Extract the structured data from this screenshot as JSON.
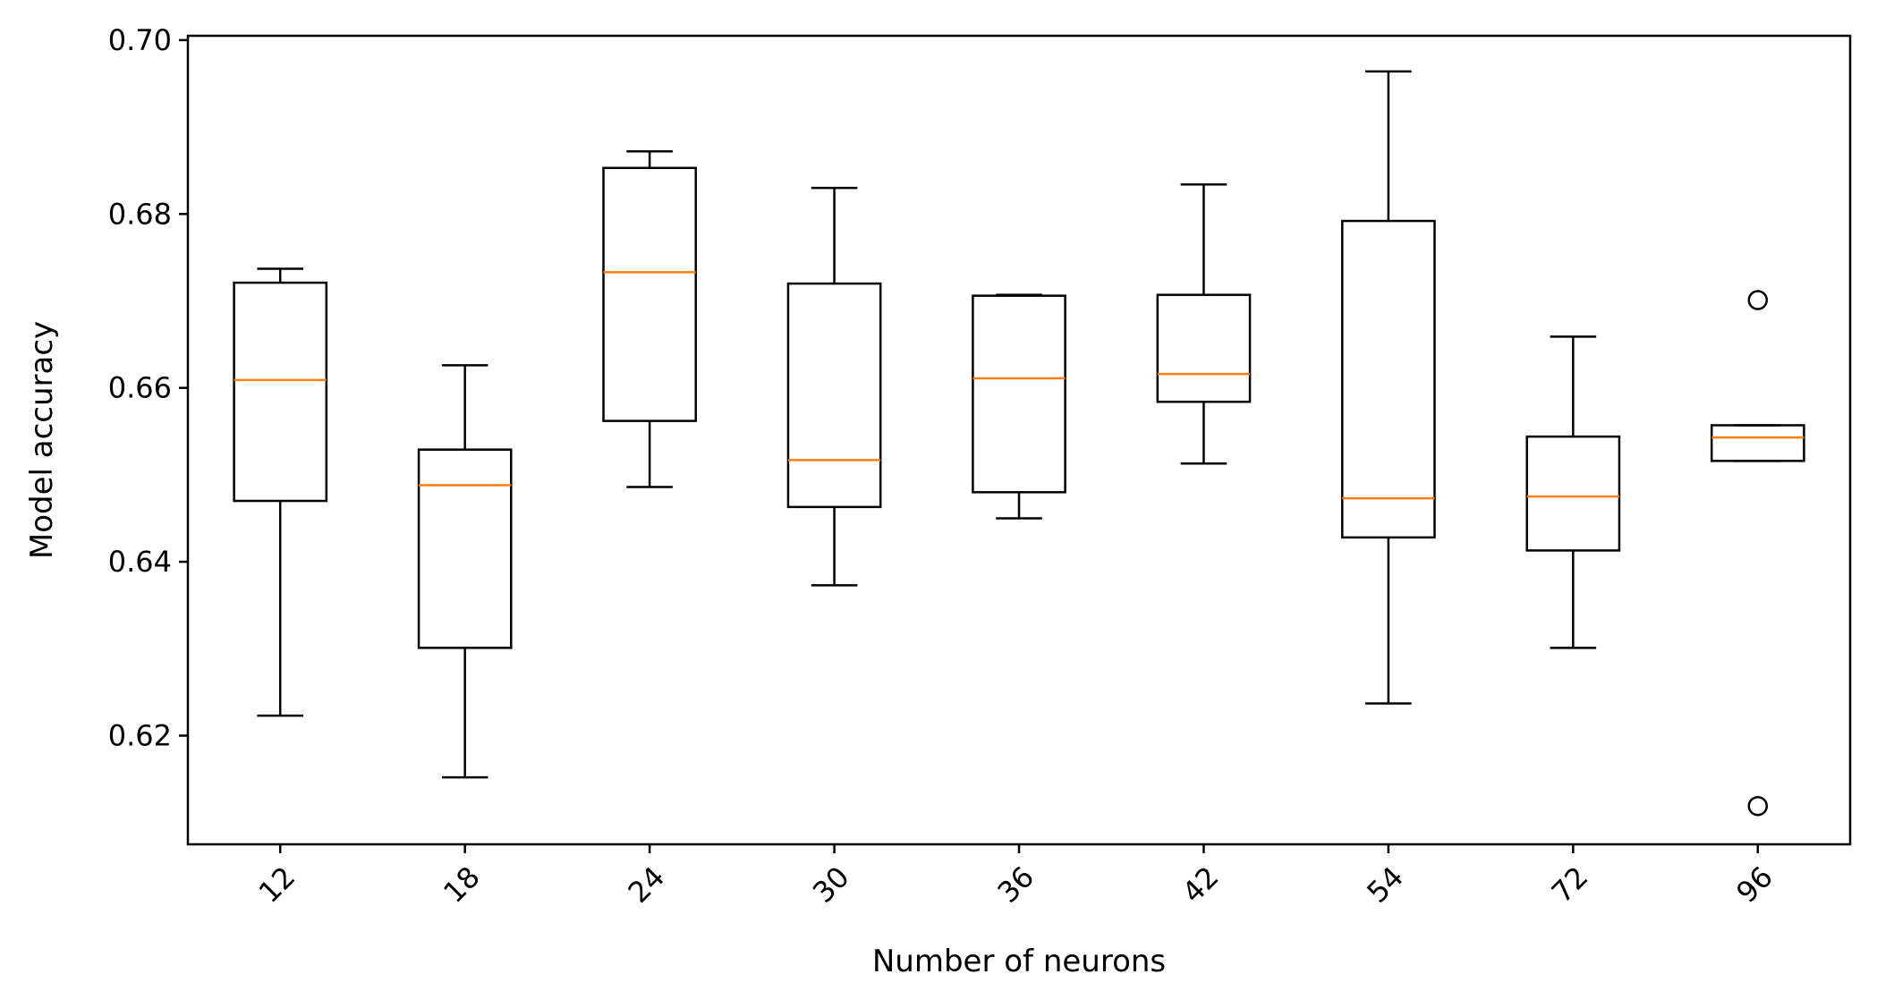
{
  "chart_data": {
    "type": "box",
    "xlabel": "Number of neurons",
    "ylabel": "Model accuracy",
    "categories": [
      "12",
      "18",
      "24",
      "30",
      "36",
      "42",
      "54",
      "72",
      "96"
    ],
    "ylim": [
      0.6075,
      0.7005
    ],
    "yticks": [
      "0.62",
      "0.64",
      "0.66",
      "0.68",
      "0.70"
    ],
    "grid": false,
    "box_color": "#000000",
    "median_color": "#ff7f0e",
    "boxes": [
      {
        "category": "12",
        "whisker_low": 0.6223,
        "q1": 0.647,
        "median": 0.6609,
        "q3": 0.6721,
        "whisker_high": 0.6737,
        "outliers": []
      },
      {
        "category": "18",
        "whisker_low": 0.6152,
        "q1": 0.6301,
        "median": 0.6488,
        "q3": 0.6529,
        "whisker_high": 0.6626,
        "outliers": []
      },
      {
        "category": "24",
        "whisker_low": 0.6486,
        "q1": 0.6562,
        "median": 0.6733,
        "q3": 0.6853,
        "whisker_high": 0.6872,
        "outliers": []
      },
      {
        "category": "30",
        "whisker_low": 0.6373,
        "q1": 0.6463,
        "median": 0.6517,
        "q3": 0.672,
        "whisker_high": 0.683,
        "outliers": []
      },
      {
        "category": "36",
        "whisker_low": 0.645,
        "q1": 0.648,
        "median": 0.6611,
        "q3": 0.6706,
        "whisker_high": 0.6707,
        "outliers": []
      },
      {
        "category": "42",
        "whisker_low": 0.6513,
        "q1": 0.6584,
        "median": 0.6616,
        "q3": 0.6707,
        "whisker_high": 0.6834,
        "outliers": []
      },
      {
        "category": "54",
        "whisker_low": 0.6237,
        "q1": 0.6428,
        "median": 0.6473,
        "q3": 0.6792,
        "whisker_high": 0.6964,
        "outliers": []
      },
      {
        "category": "72",
        "whisker_low": 0.6301,
        "q1": 0.6413,
        "median": 0.6475,
        "q3": 0.6544,
        "whisker_high": 0.6659,
        "outliers": []
      },
      {
        "category": "96",
        "whisker_low": 0.6516,
        "q1": 0.6516,
        "median": 0.6543,
        "q3": 0.6557,
        "whisker_high": 0.6557,
        "outliers": [
          0.6701,
          0.6119
        ]
      }
    ]
  }
}
